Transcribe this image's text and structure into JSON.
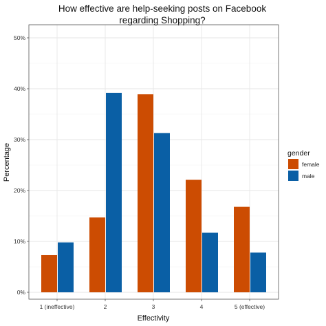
{
  "chart_data": {
    "type": "bar",
    "title_lines": [
      "How effective are help-seeking posts on Facebook",
      "regarding Shopping?"
    ],
    "xlabel": "Effectivity",
    "ylabel": "Percentage",
    "categories": [
      "1 (ineffective)",
      "2",
      "3",
      "4",
      "5 (effective)"
    ],
    "series": [
      {
        "name": "female",
        "color": "#cc4c02",
        "values": [
          7.3,
          14.7,
          38.9,
          22.1,
          16.8
        ]
      },
      {
        "name": "male",
        "color": "#0a5fa5",
        "values": [
          9.8,
          39.2,
          31.3,
          11.7,
          7.8
        ]
      }
    ],
    "ylim": [
      0,
      50
    ],
    "yticks": [
      0,
      10,
      20,
      30,
      40,
      50
    ],
    "ytick_labels": [
      "0%",
      "10%",
      "20%",
      "30%",
      "40%",
      "50%"
    ],
    "grid": true,
    "legend": {
      "title": "gender",
      "position": "right"
    }
  }
}
